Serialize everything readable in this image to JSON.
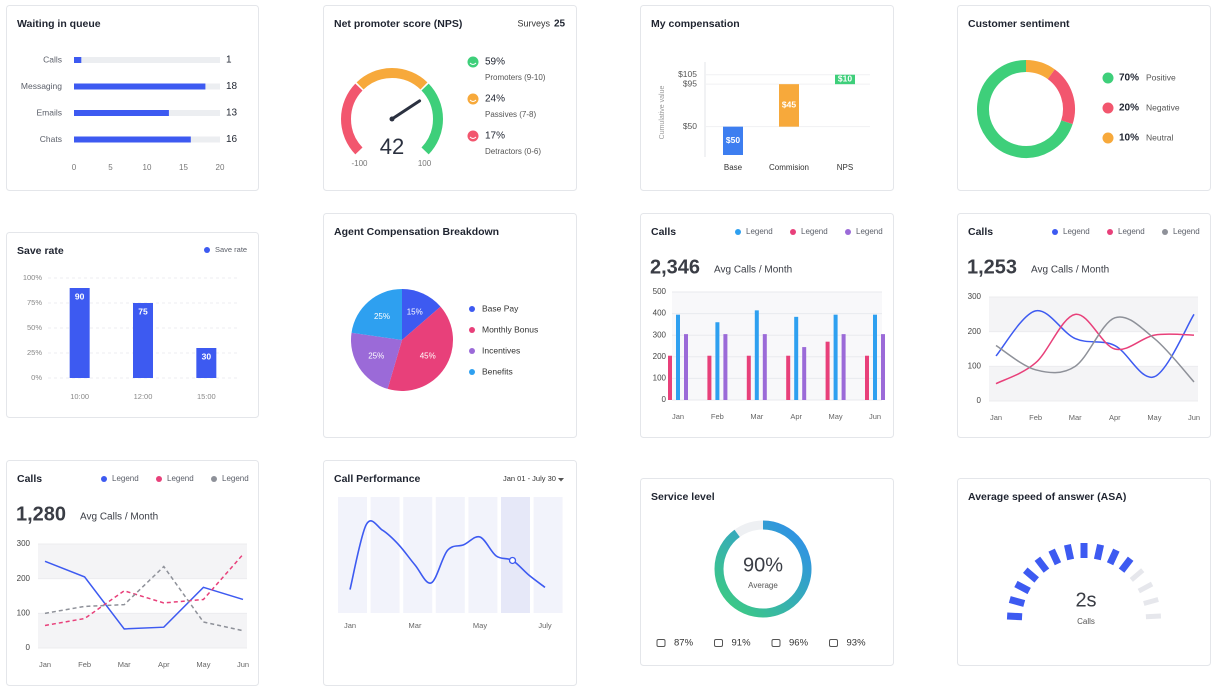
{
  "chart_data": [
    {
      "type": "hbar",
      "title": "Waiting in queue",
      "categories": [
        "Calls",
        "Messaging",
        "Emails",
        "Chats"
      ],
      "values": [
        1,
        18,
        13,
        16
      ],
      "color": "#3d5af1",
      "xlim": [
        0,
        20
      ],
      "xticks": [
        0,
        5,
        10,
        15,
        20
      ]
    },
    {
      "type": "gauge",
      "title": "Net promoter score (NPS)",
      "surveys_label": "Surveys",
      "surveys": 25,
      "value": 42,
      "xlim": [
        -100,
        100
      ],
      "xticks": [
        -100,
        100
      ],
      "needle_color": "#2b3140",
      "series": [
        {
          "name": "Promoters (9-10)",
          "color": "#3ecf7a",
          "value": 59,
          "value_label": "59%"
        },
        {
          "name": "Passives (7-8)",
          "color": "#f7a93b",
          "value": 24,
          "value_label": "24%"
        },
        {
          "name": "Detractors (0-6)",
          "color": "#f2566e",
          "value": 17,
          "value_label": "17%"
        }
      ]
    },
    {
      "type": "waterfall",
      "title": "My compensation",
      "ylabel": "Cumulative value",
      "categories": [
        "Base",
        "Commision",
        "NPS"
      ],
      "values": [
        50,
        45,
        10
      ],
      "value_labels": [
        "$50",
        "$45",
        "$10"
      ],
      "colors": [
        "#3d7ef0",
        "#f7a93b",
        "#3ecf7a"
      ],
      "ylim": [
        20,
        110
      ],
      "yticks": [
        {
          "value": 50,
          "label": "$50"
        },
        {
          "value": 95,
          "label": "$95"
        },
        {
          "value": 105,
          "label": "$105"
        }
      ]
    },
    {
      "type": "donut",
      "title": "Customer sentiment",
      "categories": [
        "Positive",
        "Negative",
        "Neutral"
      ],
      "values": [
        70,
        20,
        10
      ],
      "value_labels": [
        "70%",
        "20%",
        "10%"
      ],
      "colors": [
        "#3ecf7a",
        "#f2566e",
        "#f7a93b"
      ]
    },
    {
      "type": "bar",
      "title": "Save rate",
      "legend": "Save rate",
      "categories": [
        "10:00",
        "12:00",
        "15:00"
      ],
      "values": [
        90,
        75,
        30
      ],
      "color": "#3d5af1",
      "ylim": [
        0,
        100
      ],
      "yticks": [
        {
          "value": 0,
          "label": "0%"
        },
        {
          "value": 25,
          "label": "25%"
        },
        {
          "value": 50,
          "label": "50%"
        },
        {
          "value": 75,
          "label": "75%"
        },
        {
          "value": 100,
          "label": "100%"
        }
      ],
      "grid": true
    },
    {
      "type": "pie",
      "title": "Agent Compensation Breakdown",
      "categories": [
        "Base Pay",
        "Monthly Bonus",
        "Incentives",
        "Benefits"
      ],
      "values": [
        15,
        45,
        25,
        25
      ],
      "value_labels": [
        "15%",
        "45%",
        "25%",
        "25%"
      ],
      "colors": [
        "#3d5af1",
        "#e8407a",
        "#9b6ad8",
        "#2ea0f0"
      ]
    },
    {
      "type": "grouped-bar",
      "title": "Calls",
      "headline": "2,346",
      "subtitle": "Avg Calls / Month",
      "categories": [
        "Jan",
        "Feb",
        "Mar",
        "Apr",
        "May",
        "Jun"
      ],
      "ylim": [
        0,
        500
      ],
      "yticks": [
        0,
        100,
        200,
        300,
        400,
        500
      ],
      "series": [
        {
          "name": "Legend",
          "color": "#2ea0f0",
          "values": [
            395,
            360,
            415,
            385,
            395,
            395
          ]
        },
        {
          "name": "Legend",
          "color": "#e8407a",
          "values": [
            205,
            205,
            205,
            205,
            270,
            205
          ]
        },
        {
          "name": "Legend",
          "color": "#9b6ad8",
          "values": [
            305,
            305,
            305,
            245,
            305,
            305
          ]
        }
      ]
    },
    {
      "type": "line",
      "smooth": true,
      "title": "Calls",
      "headline": "1,253",
      "subtitle": "Avg Calls / Month",
      "categories": [
        "Jan",
        "Feb",
        "Mar",
        "Apr",
        "May",
        "Jun"
      ],
      "ylim": [
        0,
        300
      ],
      "yticks": [
        0,
        100,
        200,
        300
      ],
      "series": [
        {
          "name": "Legend",
          "color": "#3d5af1",
          "values": [
            130,
            260,
            180,
            160,
            70,
            250
          ]
        },
        {
          "name": "Legend",
          "color": "#e8407a",
          "values": [
            50,
            110,
            250,
            150,
            190,
            190
          ]
        },
        {
          "name": "Legend",
          "color": "#8e9199",
          "values": [
            160,
            90,
            100,
            240,
            180,
            55
          ]
        }
      ]
    },
    {
      "type": "line",
      "smooth": false,
      "title": "Calls",
      "headline": "1,280",
      "subtitle": "Avg Calls / Month",
      "categories": [
        "Jan",
        "Feb",
        "Mar",
        "Apr",
        "May",
        "Jun"
      ],
      "ylim": [
        0,
        300
      ],
      "yticks": [
        0,
        100,
        200,
        300
      ],
      "series": [
        {
          "name": "Legend",
          "color": "#3d5af1",
          "values": [
            250,
            205,
            55,
            60,
            175,
            140
          ]
        },
        {
          "name": "Legend",
          "color": "#e8407a",
          "dashed": true,
          "values": [
            65,
            85,
            165,
            130,
            140,
            270
          ]
        },
        {
          "name": "Legend",
          "color": "#8e9199",
          "dashed": true,
          "values": [
            100,
            120,
            125,
            235,
            75,
            50
          ]
        }
      ]
    },
    {
      "type": "performance",
      "title": "Call Performance",
      "range_label": "Jan 01 - July 30",
      "categories": [
        "Jan",
        null,
        null,
        null,
        "Mar",
        null,
        null,
        null,
        "May",
        null,
        null,
        null,
        "July"
      ],
      "values": [
        20,
        78,
        73,
        60,
        42,
        26,
        55,
        60,
        67,
        50,
        46,
        33,
        22
      ],
      "color": "#3d5af1",
      "ylim": [
        0,
        100
      ]
    },
    {
      "type": "progress",
      "title": "Service level",
      "value": 90,
      "value_label": "90%",
      "label": "Average",
      "colors": [
        "#3ecf7a",
        "#2e8cf0"
      ],
      "stats_values": [
        87,
        91,
        96,
        93
      ],
      "stats_labels": [
        "87%",
        "91%",
        "96%",
        "93%"
      ]
    },
    {
      "type": "segment-gauge",
      "title": "Average speed of answer (ASA)",
      "headline": "2s",
      "label": "Calls",
      "color": "#3d5af1"
    }
  ]
}
